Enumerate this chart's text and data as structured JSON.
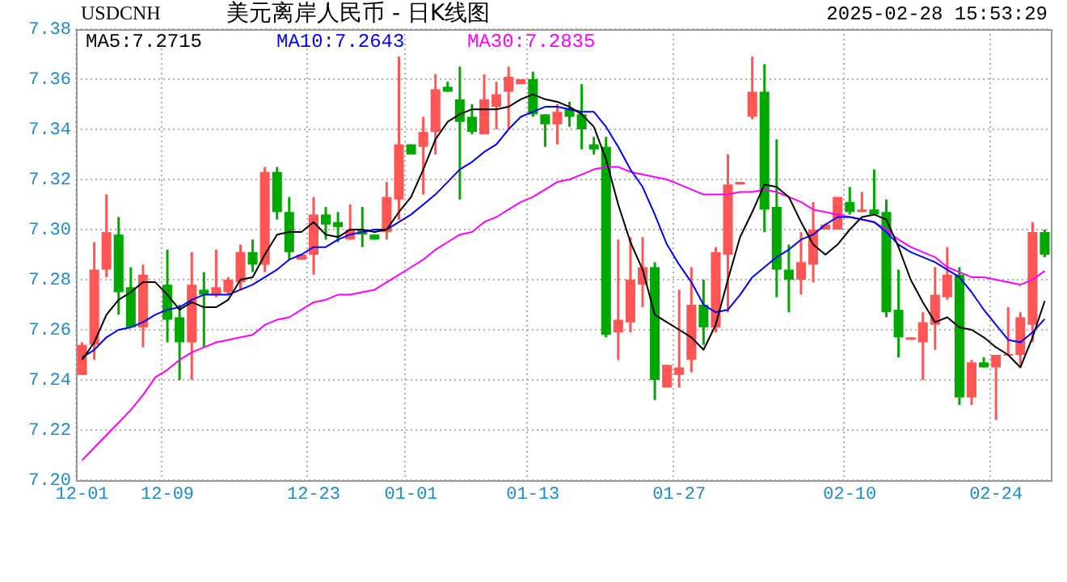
{
  "chart_data": {
    "type": "candlestick",
    "title": "美元离岸人民币 - 日K线图",
    "subtitle": "USDCNH",
    "annotations": [
      "2025-02-28 15:53:29"
    ],
    "categories": [
      "12-01",
      null,
      null,
      null,
      null,
      null,
      null,
      "12-09",
      null,
      null,
      null,
      null,
      null,
      null,
      null,
      null,
      null,
      null,
      null,
      "12-23",
      null,
      null,
      null,
      null,
      null,
      null,
      null,
      "01-01",
      null,
      null,
      null,
      null,
      null,
      null,
      null,
      null,
      null,
      "01-13",
      null,
      null,
      null,
      null,
      null,
      null,
      null,
      null,
      null,
      null,
      null,
      "01-27",
      null,
      null,
      null,
      null,
      null,
      null,
      null,
      null,
      null,
      null,
      null,
      null,
      null,
      "02-10",
      null,
      null,
      null,
      null,
      null,
      null,
      null,
      null,
      null,
      null,
      null,
      "02-24",
      null,
      null,
      null,
      null
    ],
    "ohlc": [
      [
        7.242,
        7.255,
        7.242,
        7.254
      ],
      [
        7.254,
        7.295,
        7.248,
        7.284
      ],
      [
        7.284,
        7.314,
        7.281,
        7.299
      ],
      [
        7.298,
        7.305,
        7.266,
        7.275
      ],
      [
        7.277,
        7.285,
        7.261,
        7.261
      ],
      [
        7.261,
        7.286,
        7.253,
        7.282
      ],
      null,
      [
        7.278,
        7.292,
        7.255,
        7.264
      ],
      [
        7.265,
        7.27,
        7.24,
        7.255
      ],
      [
        7.255,
        7.291,
        7.24,
        7.278
      ],
      [
        7.276,
        7.283,
        7.253,
        7.274
      ],
      [
        7.274,
        7.292,
        7.273,
        7.277
      ],
      [
        7.275,
        7.281,
        7.274,
        7.28
      ],
      [
        7.279,
        7.294,
        7.276,
        7.291
      ],
      [
        7.291,
        7.296,
        7.283,
        7.286
      ],
      [
        7.286,
        7.325,
        7.283,
        7.323
      ],
      [
        7.323,
        7.325,
        7.304,
        7.307
      ],
      [
        7.307,
        7.313,
        7.288,
        7.291
      ],
      [
        7.288,
        7.29,
        7.288,
        7.29
      ],
      [
        7.29,
        7.313,
        7.282,
        7.306
      ],
      [
        7.306,
        7.309,
        7.296,
        7.302
      ],
      [
        7.303,
        7.307,
        7.295,
        7.301
      ],
      [
        7.296,
        7.31,
        7.296,
        7.3
      ],
      [
        7.3,
        7.309,
        7.293,
        7.298
      ],
      [
        7.298,
        7.298,
        7.296,
        7.296
      ],
      [
        7.299,
        7.319,
        7.296,
        7.313
      ],
      [
        7.312,
        7.369,
        7.304,
        7.334
      ],
      [
        7.334,
        7.334,
        7.33,
        7.33
      ],
      [
        7.333,
        7.345,
        7.314,
        7.339
      ],
      [
        7.339,
        7.362,
        7.33,
        7.356
      ],
      [
        7.357,
        7.359,
        7.355,
        7.355
      ],
      [
        7.352,
        7.365,
        7.312,
        7.343
      ],
      [
        7.345,
        7.35,
        7.338,
        7.339
      ],
      [
        7.338,
        7.362,
        7.338,
        7.352
      ],
      [
        7.349,
        7.359,
        7.34,
        7.354
      ],
      [
        7.355,
        7.365,
        7.34,
        7.361
      ],
      [
        7.358,
        7.36,
        7.358,
        7.36
      ],
      [
        7.36,
        7.363,
        7.345,
        7.346
      ],
      [
        7.346,
        7.346,
        7.333,
        7.342
      ],
      [
        7.342,
        7.35,
        7.334,
        7.347
      ],
      [
        7.348,
        7.351,
        7.341,
        7.345
      ],
      [
        7.346,
        7.358,
        7.332,
        7.34
      ],
      [
        7.334,
        7.337,
        7.33,
        7.332
      ],
      [
        7.333,
        7.337,
        7.257,
        7.258
      ],
      [
        7.259,
        7.296,
        7.248,
        7.264
      ],
      [
        7.263,
        7.297,
        7.259,
        7.28
      ],
      [
        7.278,
        7.297,
        7.269,
        7.285
      ],
      [
        7.285,
        7.287,
        7.232,
        7.24
      ],
      [
        7.237,
        7.246,
        7.237,
        7.246
      ],
      [
        7.242,
        7.276,
        7.237,
        7.245
      ],
      [
        7.248,
        7.285,
        7.243,
        7.27
      ],
      [
        7.27,
        7.28,
        7.254,
        7.261
      ],
      [
        7.261,
        7.293,
        7.259,
        7.291
      ],
      [
        7.29,
        7.33,
        7.267,
        7.318
      ],
      [
        7.318,
        7.319,
        7.318,
        7.319
      ],
      [
        7.345,
        7.369,
        7.344,
        7.355
      ],
      [
        7.355,
        7.366,
        7.299,
        7.308
      ],
      [
        7.309,
        7.336,
        7.273,
        7.284
      ],
      [
        7.284,
        7.294,
        7.267,
        7.28
      ],
      [
        7.28,
        7.299,
        7.274,
        7.287
      ],
      [
        7.286,
        7.311,
        7.279,
        7.3
      ],
      [
        7.3,
        7.302,
        7.3,
        7.302
      ],
      [
        7.3,
        7.313,
        7.3,
        7.313
      ],
      [
        7.311,
        7.317,
        7.306,
        7.307
      ],
      [
        7.307,
        7.315,
        7.307,
        7.308
      ],
      [
        7.308,
        7.324,
        7.306,
        7.306
      ],
      [
        7.307,
        7.312,
        7.265,
        7.267
      ],
      [
        7.268,
        7.284,
        7.249,
        7.257
      ],
      [
        7.256,
        7.257,
        7.256,
        7.257
      ],
      [
        7.255,
        7.267,
        7.24,
        7.263
      ],
      [
        7.262,
        7.285,
        7.252,
        7.274
      ],
      [
        7.273,
        7.293,
        7.272,
        7.282
      ],
      [
        7.282,
        7.285,
        7.23,
        7.233
      ],
      [
        7.233,
        7.248,
        7.23,
        7.247
      ],
      [
        7.247,
        7.249,
        7.245,
        7.245
      ],
      [
        7.245,
        7.25,
        7.224,
        7.25
      ],
      [
        7.25,
        7.269,
        7.25,
        7.25
      ],
      [
        7.25,
        7.267,
        7.246,
        7.265
      ],
      [
        7.262,
        7.303,
        7.255,
        7.299
      ],
      [
        7.299,
        7.3,
        7.289,
        7.29
      ]
    ],
    "series": [
      {
        "name": "MA5:7.2715",
        "type": "line",
        "color": "#000000",
        "values": [
          7.248,
          7.255,
          7.266,
          7.272,
          7.275,
          7.279,
          7.279,
          7.274,
          7.268,
          7.271,
          7.269,
          7.269,
          7.272,
          7.28,
          7.281,
          7.29,
          7.298,
          7.299,
          7.299,
          7.303,
          7.298,
          7.297,
          7.3,
          7.3,
          7.299,
          7.3,
          7.307,
          7.313,
          7.324,
          7.336,
          7.343,
          7.346,
          7.348,
          7.348,
          7.348,
          7.349,
          7.352,
          7.354,
          7.352,
          7.351,
          7.349,
          7.346,
          7.341,
          7.328,
          7.31,
          7.295,
          7.284,
          7.266,
          7.263,
          7.26,
          7.257,
          7.252,
          7.262,
          7.28,
          7.297,
          7.307,
          7.318,
          7.317,
          7.313,
          7.303,
          7.294,
          7.29,
          7.294,
          7.3,
          7.305,
          7.306,
          7.304,
          7.293,
          7.28,
          7.271,
          7.263,
          7.265,
          7.261,
          7.26,
          7.257,
          7.253,
          7.25,
          7.245,
          7.257,
          7.2715
        ]
      },
      {
        "name": "MA10:7.2643",
        "type": "line",
        "color": "#0000ff",
        "values": [
          7.249,
          7.252,
          7.257,
          7.26,
          7.261,
          7.263,
          7.266,
          7.268,
          7.269,
          7.272,
          7.274,
          7.274,
          7.274,
          7.276,
          7.278,
          7.281,
          7.284,
          7.288,
          7.29,
          7.293,
          7.293,
          7.296,
          7.298,
          7.299,
          7.3,
          7.3,
          7.303,
          7.306,
          7.31,
          7.314,
          7.319,
          7.324,
          7.327,
          7.331,
          7.334,
          7.34,
          7.345,
          7.347,
          7.349,
          7.349,
          7.348,
          7.347,
          7.347,
          7.341,
          7.333,
          7.324,
          7.317,
          7.306,
          7.294,
          7.286,
          7.279,
          7.27,
          7.267,
          7.268,
          7.274,
          7.281,
          7.285,
          7.289,
          7.292,
          7.296,
          7.298,
          7.302,
          7.305,
          7.305,
          7.304,
          7.303,
          7.299,
          7.294,
          7.291,
          7.289,
          7.287,
          7.284,
          7.281,
          7.275,
          7.268,
          7.262,
          7.256,
          7.255,
          7.259,
          7.2643
        ]
      },
      {
        "name": "MA30:7.2835",
        "type": "line",
        "color": "#ff00ff",
        "values": [
          7.208,
          7.213,
          7.218,
          7.223,
          7.228,
          7.234,
          7.241,
          7.244,
          7.248,
          7.251,
          7.253,
          7.255,
          7.256,
          7.257,
          7.258,
          7.262,
          7.264,
          7.265,
          7.268,
          7.271,
          7.272,
          7.274,
          7.274,
          7.275,
          7.276,
          7.279,
          7.282,
          7.285,
          7.288,
          7.292,
          7.295,
          7.298,
          7.299,
          7.303,
          7.305,
          7.308,
          7.311,
          7.313,
          7.316,
          7.319,
          7.32,
          7.322,
          7.324,
          7.325,
          7.325,
          7.323,
          7.322,
          7.321,
          7.32,
          7.318,
          7.316,
          7.314,
          7.314,
          7.314,
          7.315,
          7.315,
          7.316,
          7.315,
          7.313,
          7.311,
          7.308,
          7.307,
          7.306,
          7.305,
          7.304,
          7.303,
          7.3,
          7.296,
          7.293,
          7.291,
          7.289,
          7.285,
          7.283,
          7.281,
          7.281,
          7.28,
          7.279,
          7.278,
          7.28,
          7.2835
        ]
      }
    ],
    "ylim": [
      7.2,
      7.38
    ],
    "yticks": [
      {
        "value": 7.2,
        "label": "7.20"
      },
      7.22,
      7.24,
      7.26,
      7.28,
      {
        "value": 7.3,
        "label": "7.30"
      },
      7.32,
      7.34,
      7.36,
      7.38
    ],
    "grid": true,
    "legend": "top left"
  }
}
